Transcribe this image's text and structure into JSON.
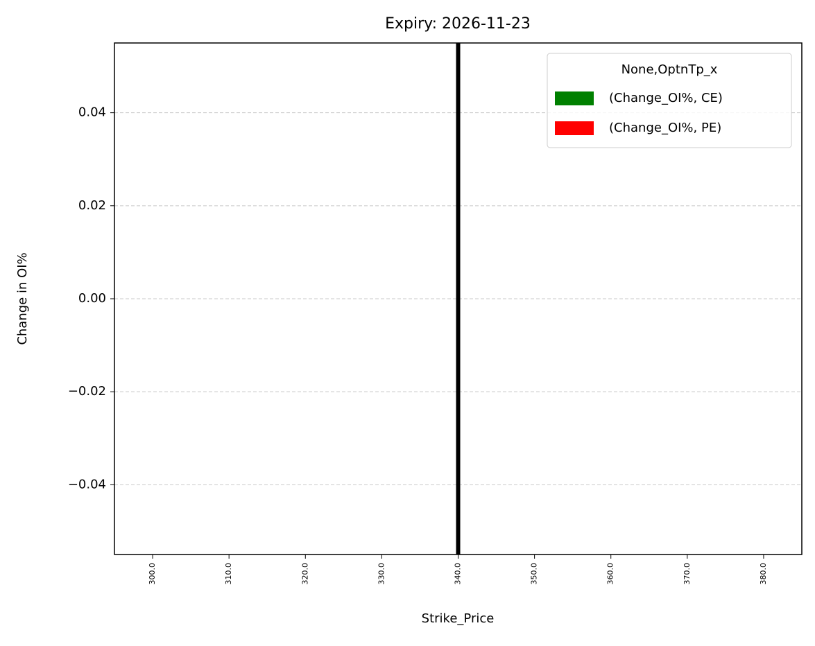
{
  "chart_data": {
    "type": "bar",
    "title": "Expiry: 2026-11-23",
    "x_label": "Strike_Price",
    "y_label": "Change in OI%",
    "categories": [
      "300.0",
      "310.0",
      "320.0",
      "330.0",
      "340.0",
      "350.0",
      "360.0",
      "370.0",
      "380.0"
    ],
    "series": [
      {
        "name": "(Change_OI%, CE)",
        "color": "#008000",
        "values": [
          0,
          0,
          0,
          0,
          0,
          0,
          0,
          0,
          0
        ]
      },
      {
        "name": "(Change_OI%, PE)",
        "color": "#ff0000",
        "values": [
          0,
          0,
          0,
          0,
          0,
          0,
          0,
          0,
          0
        ]
      }
    ],
    "legend_title": "None,OptnTp_x",
    "legend": "upper right",
    "ylim": [
      -0.055,
      0.055
    ],
    "yticks": [
      {
        "value": -0.04,
        "label": "−0.04"
      },
      {
        "value": -0.02,
        "label": "−0.02"
      },
      {
        "value": 0,
        "label": "0.00"
      },
      0.02,
      0.04
    ],
    "grid": true,
    "vline": {
      "category_index": 4,
      "color": "#000000"
    }
  }
}
